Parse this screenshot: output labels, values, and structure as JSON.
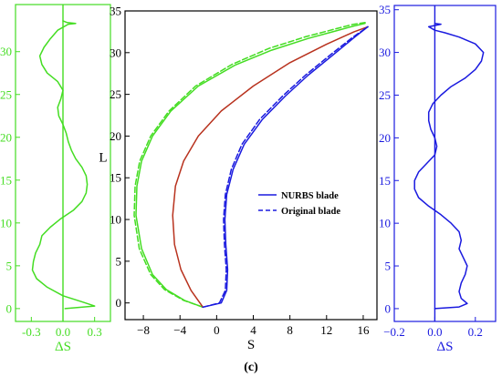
{
  "caption": "(c)",
  "chart_data": [
    {
      "id": "left",
      "type": "line",
      "xlabel": "ΔS",
      "ylabel": "",
      "xlim": [
        -0.45,
        0.45
      ],
      "ylim": [
        -1.5,
        35.5
      ],
      "xticks": [
        -0.3,
        0.0,
        0.3
      ],
      "xtick_labels": [
        "-0.3",
        "0.0",
        "0.3"
      ],
      "yticks": [
        0,
        5,
        10,
        15,
        20,
        25,
        30
      ],
      "ytick_labels": [
        "0",
        "5",
        "10",
        "15",
        "20",
        "25",
        "30"
      ],
      "zero_line": 0,
      "color": "#44dd22",
      "series": [
        {
          "points": [
            [
              0.02,
              0
            ],
            [
              0.3,
              0.3
            ],
            [
              0.18,
              0.8
            ],
            [
              0.0,
              1.5
            ],
            [
              -0.15,
              2.5
            ],
            [
              -0.25,
              3.5
            ],
            [
              -0.29,
              4.5
            ],
            [
              -0.28,
              5.5
            ],
            [
              -0.26,
              6.5
            ],
            [
              -0.22,
              7.5
            ],
            [
              -0.2,
              8.5
            ],
            [
              -0.12,
              9.5
            ],
            [
              -0.02,
              10.5
            ],
            [
              0.1,
              11.5
            ],
            [
              0.18,
              12.5
            ],
            [
              0.22,
              13.5
            ],
            [
              0.23,
              14.5
            ],
            [
              0.22,
              15.5
            ],
            [
              0.18,
              16.5
            ],
            [
              0.12,
              17.5
            ],
            [
              0.08,
              18.5
            ],
            [
              0.05,
              19.5
            ],
            [
              0.03,
              20.5
            ],
            [
              0.0,
              21.5
            ],
            [
              -0.04,
              22.5
            ],
            [
              -0.05,
              23.5
            ],
            [
              -0.02,
              24.5
            ],
            [
              0.0,
              25.5
            ],
            [
              -0.05,
              26.5
            ],
            [
              -0.15,
              27.5
            ],
            [
              -0.2,
              28.5
            ],
            [
              -0.22,
              29.5
            ],
            [
              -0.18,
              30.5
            ],
            [
              -0.12,
              31.5
            ],
            [
              -0.05,
              32.5
            ],
            [
              0.05,
              33.2
            ],
            [
              0.12,
              33.3
            ],
            [
              0.04,
              33.4
            ],
            [
              0.0,
              33.6
            ]
          ]
        }
      ]
    },
    {
      "id": "main",
      "type": "line",
      "xlabel": "S",
      "ylabel": "L",
      "xlim": [
        -10,
        17.5
      ],
      "ylim": [
        -2,
        35
      ],
      "xticks": [
        -8,
        -4,
        0,
        4,
        8,
        12,
        16
      ],
      "xtick_labels": [
        "−8",
        "−4",
        "0",
        "4",
        "8",
        "12",
        "16"
      ],
      "yticks": [
        0,
        5,
        10,
        15,
        20,
        25,
        30,
        35
      ],
      "ytick_labels": [
        "0",
        "5",
        "10",
        "15",
        "20",
        "25",
        "30",
        "35"
      ],
      "legend": {
        "position": "center-right",
        "entries": [
          {
            "label": "NURBS blade",
            "color": "#1a1adf",
            "dash": "solid"
          },
          {
            "label": "Original blade",
            "color": "#1a1adf",
            "dash": "dashed"
          }
        ]
      },
      "series": [
        {
          "role": "suction-side-nurbs",
          "color": "#44dd22",
          "dash": "solid",
          "points": [
            [
              -1.5,
              -0.5
            ],
            [
              -3.5,
              0.3
            ],
            [
              -5.5,
              1.6
            ],
            [
              -7,
              3.4
            ],
            [
              -8.2,
              6.5
            ],
            [
              -8.8,
              10.5
            ],
            [
              -8.7,
              14
            ],
            [
              -8.2,
              17
            ],
            [
              -7,
              20
            ],
            [
              -5,
              23
            ],
            [
              -2,
              26
            ],
            [
              2,
              28.5
            ],
            [
              6,
              30.3
            ],
            [
              10,
              31.7
            ],
            [
              13,
              32.6
            ],
            [
              15,
              33.2
            ],
            [
              16.2,
              33.5
            ]
          ]
        },
        {
          "role": "suction-side-original",
          "color": "#44dd22",
          "dash": "dashed",
          "points": [
            [
              -1.5,
              -0.5
            ],
            [
              -3.6,
              0.3
            ],
            [
              -5.7,
              1.6
            ],
            [
              -7.2,
              3.4
            ],
            [
              -8.45,
              6.5
            ],
            [
              -9.0,
              10.5
            ],
            [
              -8.9,
              14
            ],
            [
              -8.4,
              17
            ],
            [
              -7.2,
              20
            ],
            [
              -5.2,
              23
            ],
            [
              -2.3,
              26
            ],
            [
              1.7,
              28.6
            ],
            [
              5.7,
              30.5
            ],
            [
              9.7,
              31.9
            ],
            [
              12.8,
              32.8
            ],
            [
              14.9,
              33.4
            ],
            [
              16.2,
              33.6
            ]
          ]
        },
        {
          "role": "camber-line",
          "color": "#b8321e",
          "dash": "solid",
          "points": [
            [
              -1.5,
              -0.5
            ],
            [
              -2.8,
              1.5
            ],
            [
              -3.9,
              4
            ],
            [
              -4.6,
              7
            ],
            [
              -4.8,
              10.5
            ],
            [
              -4.5,
              14
            ],
            [
              -3.6,
              17
            ],
            [
              -2,
              20
            ],
            [
              0.5,
              23
            ],
            [
              4,
              26
            ],
            [
              8,
              28.8
            ],
            [
              12,
              31
            ],
            [
              15,
              32.5
            ],
            [
              16.5,
              33.1
            ]
          ]
        },
        {
          "role": "pressure-side-nurbs",
          "color": "#1a1adf",
          "dash": "solid",
          "points": [
            [
              -1.5,
              -0.5
            ],
            [
              0.5,
              0
            ],
            [
              1.1,
              1.5
            ],
            [
              1.2,
              4
            ],
            [
              1,
              7
            ],
            [
              0.9,
              10
            ],
            [
              1.1,
              13
            ],
            [
              1.8,
              16
            ],
            [
              3,
              19
            ],
            [
              5,
              22
            ],
            [
              7.5,
              24.8
            ],
            [
              10,
              27.3
            ],
            [
              12.8,
              29.8
            ],
            [
              15,
              31.8
            ],
            [
              16.5,
              33.1
            ]
          ]
        },
        {
          "role": "pressure-side-original",
          "color": "#1a1adf",
          "dash": "dashed",
          "points": [
            [
              -1.5,
              -0.5
            ],
            [
              0.3,
              0
            ],
            [
              0.95,
              1.5
            ],
            [
              1.05,
              4
            ],
            [
              0.85,
              7
            ],
            [
              0.75,
              10
            ],
            [
              0.95,
              13
            ],
            [
              1.6,
              16
            ],
            [
              2.75,
              19
            ],
            [
              4.7,
              22
            ],
            [
              7.2,
              24.8
            ],
            [
              9.7,
              27.3
            ],
            [
              12.5,
              29.8
            ],
            [
              14.8,
              31.8
            ],
            [
              16.5,
              33.1
            ]
          ]
        }
      ]
    },
    {
      "id": "right",
      "type": "line",
      "xlabel": "ΔS",
      "ylabel": "",
      "xlim": [
        -0.2,
        0.3
      ],
      "ylim": [
        -1.5,
        35.5
      ],
      "xticks": [
        -0.2,
        0.0,
        0.2
      ],
      "xtick_labels": [
        "−0.2",
        "0.0",
        "0.2"
      ],
      "yticks": [
        0,
        5,
        10,
        15,
        20,
        25,
        30,
        35
      ],
      "ytick_labels": [
        "0",
        "5",
        "10",
        "15",
        "20",
        "25",
        "30",
        "35"
      ],
      "zero_line": 0,
      "color": "#1a1adf",
      "series": [
        {
          "points": [
            [
              0.0,
              0
            ],
            [
              0.12,
              0.2
            ],
            [
              0.16,
              0.6
            ],
            [
              0.13,
              1.2
            ],
            [
              0.12,
              2
            ],
            [
              0.13,
              3
            ],
            [
              0.15,
              4
            ],
            [
              0.16,
              5
            ],
            [
              0.14,
              6
            ],
            [
              0.12,
              7
            ],
            [
              0.13,
              8
            ],
            [
              0.12,
              9
            ],
            [
              0.08,
              10
            ],
            [
              0.03,
              11
            ],
            [
              -0.03,
              12
            ],
            [
              -0.08,
              13
            ],
            [
              -0.1,
              14
            ],
            [
              -0.1,
              15
            ],
            [
              -0.08,
              16
            ],
            [
              -0.04,
              17
            ],
            [
              0.0,
              18
            ],
            [
              0.01,
              19
            ],
            [
              0.0,
              20
            ],
            [
              -0.02,
              21
            ],
            [
              -0.03,
              22
            ],
            [
              -0.03,
              23
            ],
            [
              -0.01,
              24
            ],
            [
              0.03,
              25
            ],
            [
              0.08,
              26
            ],
            [
              0.15,
              27
            ],
            [
              0.2,
              28
            ],
            [
              0.23,
              29
            ],
            [
              0.24,
              30
            ],
            [
              0.2,
              31
            ],
            [
              0.12,
              31.8
            ],
            [
              0.05,
              32.3
            ],
            [
              0.0,
              32.6
            ],
            [
              -0.03,
              33
            ],
            [
              0.03,
              33.3
            ],
            [
              0.0,
              33.4
            ]
          ]
        }
      ]
    }
  ]
}
